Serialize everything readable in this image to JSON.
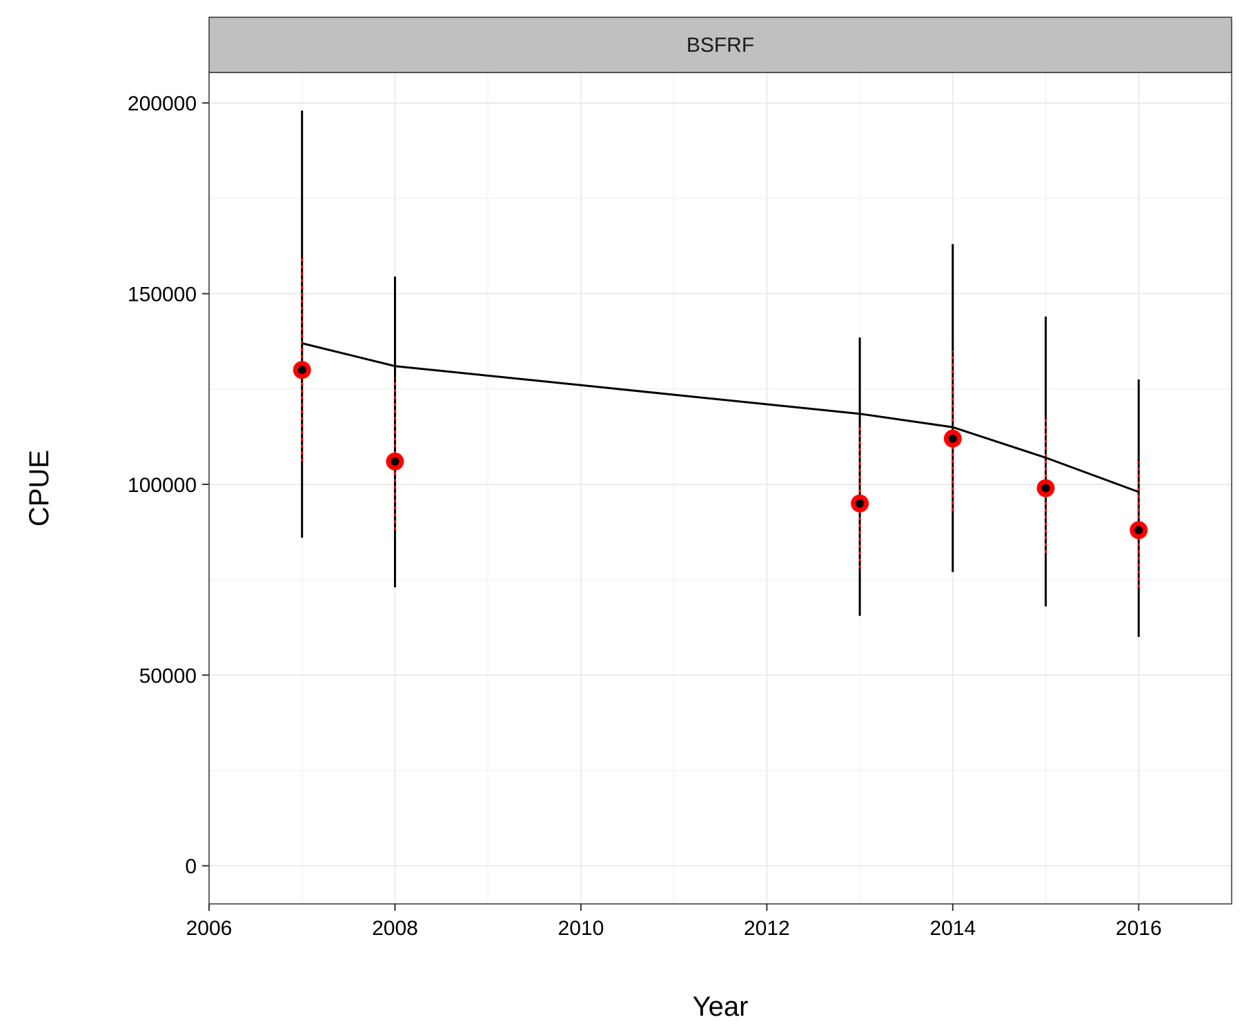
{
  "chart_data": {
    "type": "line",
    "facet_label": "BSFRF",
    "xlabel": "Year",
    "ylabel": "CPUE",
    "xlim": [
      2006,
      2017
    ],
    "ylim": [
      -10000,
      208000
    ],
    "x_ticks": [
      2006,
      2008,
      2010,
      2012,
      2014,
      2016
    ],
    "x_tick_labels": [
      "2006",
      "2008",
      "2010",
      "2012",
      "2014",
      "2016"
    ],
    "y_ticks": [
      0,
      50000,
      100000,
      150000,
      200000
    ],
    "y_tick_labels": [
      "0",
      "50000",
      "100000",
      "150000",
      "200000"
    ],
    "grid": true,
    "observed": {
      "x": [
        2007,
        2008,
        2013,
        2014,
        2015,
        2016
      ],
      "y": [
        130000,
        106000,
        95000,
        112000,
        99000,
        88000
      ],
      "outer_lower": [
        86000,
        73000,
        65500,
        77000,
        68000,
        60000
      ],
      "outer_upper": [
        198000,
        154500,
        138500,
        163000,
        144000,
        127500
      ],
      "inner_lower": [
        106000,
        88000,
        78000,
        93000,
        82000,
        73000
      ],
      "inner_upper": [
        160000,
        128000,
        115000,
        135000,
        118000,
        106000
      ]
    },
    "predicted": {
      "x": [
        2007,
        2008,
        2013,
        2014,
        2015,
        2016
      ],
      "y": [
        137000,
        131000,
        118500,
        115000,
        107000,
        98000
      ]
    },
    "colors": {
      "point_fill": "#ff0000",
      "point_center": "#000000",
      "error_bar": "#000000",
      "inner_error_bar": "#ff0000",
      "fit_line": "#000000",
      "strip_background": "#c0c0c0",
      "grid_major": "#e6e6e6",
      "grid_minor": "#f3f3f3"
    }
  }
}
